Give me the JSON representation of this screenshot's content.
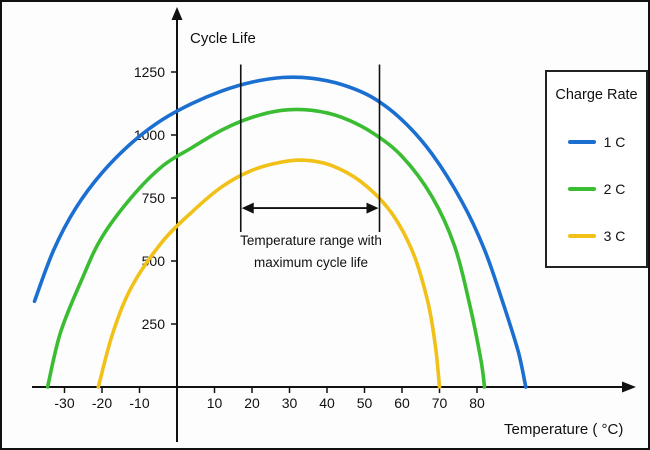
{
  "chart_data": {
    "type": "line",
    "title": "Cycle Life",
    "xlabel": "Temperature ( °C)",
    "ylabel": "Cycle Life",
    "xlim": [
      -40,
      95
    ],
    "ylim": [
      0,
      1350
    ],
    "x_ticks": [
      -30,
      -20,
      -10,
      10,
      20,
      30,
      40,
      50,
      60,
      70,
      80
    ],
    "y_ticks": [
      250,
      500,
      750,
      1000,
      1250
    ],
    "grid": false,
    "legend": {
      "title": "Charge Rate",
      "position": "right",
      "entries": [
        {
          "label": "1 C",
          "color": "#1b6fd1"
        },
        {
          "label": "2 C",
          "color": "#3bbd33"
        },
        {
          "label": "3 C",
          "color": "#f2c118"
        }
      ]
    },
    "series": [
      {
        "name": "1 C",
        "color": "#1b6fd1",
        "points": [
          [
            -38,
            340
          ],
          [
            -33,
            540
          ],
          [
            -27,
            710
          ],
          [
            -20,
            850
          ],
          [
            -12,
            970
          ],
          [
            -4,
            1060
          ],
          [
            4,
            1125
          ],
          [
            12,
            1175
          ],
          [
            20,
            1210
          ],
          [
            28,
            1228
          ],
          [
            36,
            1225
          ],
          [
            44,
            1200
          ],
          [
            52,
            1150
          ],
          [
            60,
            1060
          ],
          [
            68,
            925
          ],
          [
            76,
            735
          ],
          [
            82,
            545
          ],
          [
            87,
            330
          ],
          [
            91,
            140
          ],
          [
            93,
            0
          ]
        ]
      },
      {
        "name": "2 C",
        "color": "#3bbd33",
        "points": [
          [
            -34.5,
            0
          ],
          [
            -31,
            220
          ],
          [
            -25,
            440
          ],
          [
            -20,
            595
          ],
          [
            -12,
            755
          ],
          [
            -4,
            875
          ],
          [
            4,
            950
          ],
          [
            12,
            1020
          ],
          [
            20,
            1070
          ],
          [
            28,
            1098
          ],
          [
            36,
            1098
          ],
          [
            44,
            1070
          ],
          [
            52,
            1010
          ],
          [
            60,
            915
          ],
          [
            68,
            755
          ],
          [
            74,
            560
          ],
          [
            78,
            330
          ],
          [
            81,
            110
          ],
          [
            82,
            0
          ]
        ]
      },
      {
        "name": "3 C",
        "color": "#f2c118",
        "points": [
          [
            -21,
            0
          ],
          [
            -17,
            220
          ],
          [
            -12,
            400
          ],
          [
            -4,
            575
          ],
          [
            4,
            695
          ],
          [
            12,
            795
          ],
          [
            20,
            860
          ],
          [
            28,
            893
          ],
          [
            34,
            900
          ],
          [
            41,
            880
          ],
          [
            49,
            815
          ],
          [
            57,
            695
          ],
          [
            63,
            530
          ],
          [
            67,
            330
          ],
          [
            69,
            150
          ],
          [
            70,
            0
          ]
        ]
      }
    ],
    "annotation": {
      "lines": [
        "Temperature range with",
        "maximum cycle life"
      ],
      "range_celsius": [
        17,
        54
      ],
      "arrow_y_value": 710,
      "ref_line_top_value": 1280,
      "ref_line_bottom_value": 615
    }
  }
}
